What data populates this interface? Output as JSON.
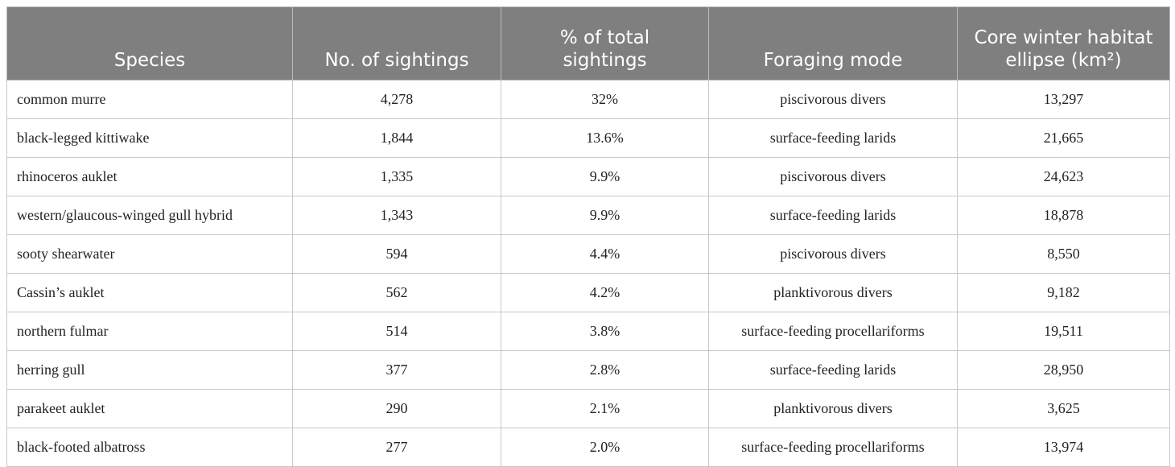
{
  "table": {
    "headers": [
      "Species",
      "No. of sightings",
      "% of total sightings",
      "Foraging mode",
      "Core winter habitat ellipse (km²)"
    ],
    "rows": [
      [
        "common murre",
        "4,278",
        "32%",
        "piscivorous divers",
        "13,297"
      ],
      [
        "black-legged kittiwake",
        "1,844",
        "13.6%",
        "surface-feeding larids",
        "21,665"
      ],
      [
        "rhinoceros auklet",
        "1,335",
        "9.9%",
        "piscivorous divers",
        "24,623"
      ],
      [
        "western/glaucous-winged gull hybrid",
        "1,343",
        "9.9%",
        "surface-feeding larids",
        "18,878"
      ],
      [
        "sooty shearwater",
        "594",
        "4.4%",
        "piscivorous divers",
        "8,550"
      ],
      [
        "Cassin’s auklet",
        "562",
        "4.2%",
        "planktivorous divers",
        "9,182"
      ],
      [
        "northern fulmar",
        "514",
        "3.8%",
        "surface-feeding procellariforms",
        "19,511"
      ],
      [
        "herring gull",
        "377",
        "2.8%",
        "surface-feeding larids",
        "28,950"
      ],
      [
        "parakeet auklet",
        "290",
        "2.1%",
        "planktivorous divers",
        "3,625"
      ],
      [
        "black-footed albatross",
        "277",
        "2.0%",
        "surface-feeding procellariforms",
        "13,974"
      ]
    ]
  }
}
